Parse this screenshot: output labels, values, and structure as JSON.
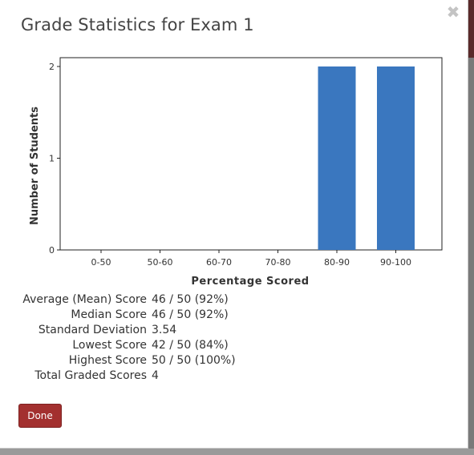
{
  "modal": {
    "title": "Grade Statistics for Exam 1",
    "close_icon": "close-icon",
    "done_label": "Done"
  },
  "colors": {
    "bar": "#3a77bf",
    "done_button": "#a3302f"
  },
  "chart_data": {
    "type": "bar",
    "categories": [
      "0-50",
      "50-60",
      "60-70",
      "70-80",
      "80-90",
      "90-100"
    ],
    "values": [
      0,
      0,
      0,
      0,
      2,
      2
    ],
    "xlabel": "Percentage Scored",
    "ylabel": "Number of Students",
    "ylim": [
      0,
      2
    ],
    "yticks": [
      "0",
      "1",
      "2"
    ],
    "grid": false
  },
  "stats": [
    {
      "label": "Average (Mean) Score",
      "value": "46 / 50 (92%)"
    },
    {
      "label": "Median Score",
      "value": "46 / 50 (92%)"
    },
    {
      "label": "Standard Deviation",
      "value": "3.54"
    },
    {
      "label": "Lowest Score",
      "value": "42 / 50 (84%)"
    },
    {
      "label": "Highest Score",
      "value": "50 / 50 (100%)"
    },
    {
      "label": "Total Graded Scores",
      "value": "4"
    }
  ]
}
